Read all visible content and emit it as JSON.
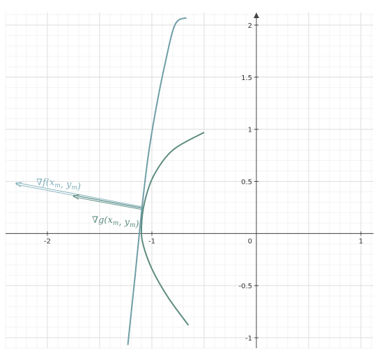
{
  "chart_data": {
    "type": "line",
    "title": "",
    "xlabel": "",
    "ylabel": "",
    "xlim": [
      -2.4,
      1.12
    ],
    "ylim": [
      -1.1,
      2.12
    ],
    "grid": true,
    "x_ticks": [
      {
        "value": -2,
        "label": "-2"
      },
      {
        "value": -1,
        "label": "-1"
      },
      {
        "value": 1,
        "label": "1"
      }
    ],
    "y_ticks": [
      {
        "value": 2,
        "label": "2"
      },
      {
        "value": 1.5,
        "label": "1.5"
      },
      {
        "value": 1,
        "label": "1"
      },
      {
        "value": 0.5,
        "label": "0.5"
      },
      {
        "value": -0.5,
        "label": "-0.5"
      },
      {
        "value": -1,
        "label": "-1"
      }
    ],
    "origin_label": "0",
    "series": [
      {
        "color": "#6f9ea6",
        "points": [
          [
            -1.23,
            -1.07
          ],
          [
            -1.2,
            -0.78
          ],
          [
            -1.16,
            -0.4
          ],
          [
            -1.12,
            0.0
          ],
          [
            -1.08,
            0.38
          ],
          [
            -1.03,
            0.78
          ],
          [
            -0.96,
            1.2
          ],
          [
            -0.88,
            1.6
          ],
          [
            -0.78,
            2.0
          ],
          [
            -0.67,
            2.07
          ]
        ]
      },
      {
        "color": "#5e8c80",
        "points": [
          [
            -0.65,
            -0.88
          ],
          [
            -0.84,
            -0.62
          ],
          [
            -0.99,
            -0.36
          ],
          [
            -1.08,
            -0.12
          ],
          [
            -1.1,
            0.05
          ],
          [
            -1.07,
            0.3
          ],
          [
            -0.98,
            0.56
          ],
          [
            -0.8,
            0.8
          ],
          [
            -0.5,
            0.97
          ]
        ]
      }
    ],
    "vectors": [
      {
        "name": "∇f(xm, ym)",
        "color": "#7fb0bb",
        "from": [
          -1.1,
          0.25
        ],
        "to": [
          -2.3,
          0.48
        ],
        "label": {
          "prefix": "∇f(",
          "x": "x",
          "x_sub": "m",
          "y": "y",
          "y_sub": "m",
          "suffix": ")"
        }
      },
      {
        "name": "∇g(xm, ym)",
        "color": "#5e8c80",
        "from": [
          -1.1,
          0.24
        ],
        "to": [
          -1.75,
          0.36
        ],
        "label": {
          "prefix": "∇g(",
          "x": "x",
          "x_sub": "m",
          "y": "y",
          "y_sub": "m",
          "suffix": ")"
        }
      }
    ]
  }
}
